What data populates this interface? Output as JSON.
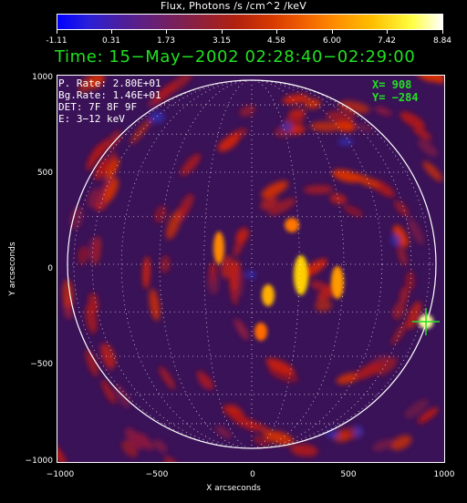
{
  "colorbar": {
    "title": "Flux, Photons /s /cm^2 /keV",
    "ticks": [
      "-1.11",
      "0.31",
      "1.73",
      "3.15",
      "4.58",
      "6.00",
      "7.42",
      "8.84"
    ]
  },
  "header": {
    "time": "Time: 15−May−2002 02:28:40−02:29:00"
  },
  "info": {
    "p_rate": "P. Rate:  2.80E+01",
    "bg_rate": "Bg.Rate:  1.46E+01",
    "det": "DET: 7F 8F 9F",
    "energy": "E: 3−12 keV"
  },
  "cursor": {
    "x": "X=  908",
    "y": "Y= −284"
  },
  "axes": {
    "xlabel": "X arcseconds",
    "ylabel": "Y arcseconds",
    "xticks": [
      "−1000",
      "−500",
      "0",
      "500",
      "1000"
    ],
    "yticks": [
      "1000",
      "500",
      "0",
      "−500",
      "−1000"
    ]
  },
  "colors": {
    "text_green": "#22e022",
    "background": "#000000",
    "limb": "#ffffff"
  }
}
